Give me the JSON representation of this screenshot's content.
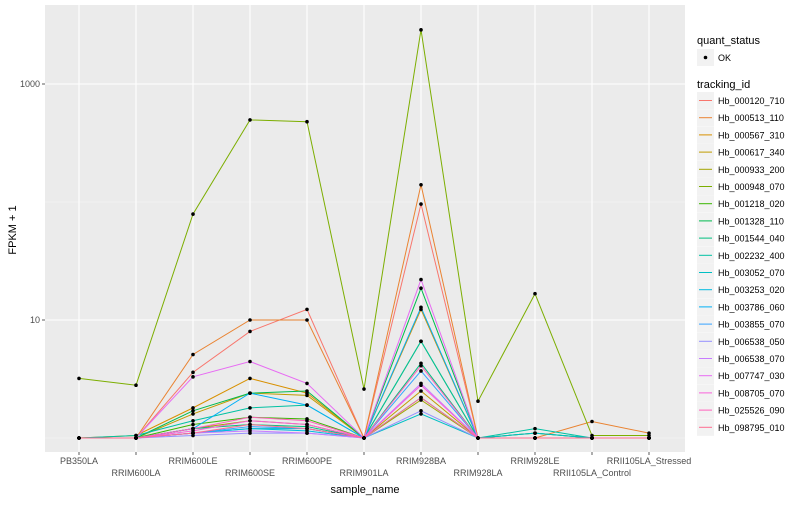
{
  "chart_data": {
    "type": "line",
    "xlabel": "sample_name",
    "ylabel": "FPKM + 1",
    "yscale": "log10",
    "ylim": [
      0.8,
      4000
    ],
    "y_ticks": [
      10,
      1000
    ],
    "y_tick_labels": [
      "10",
      "1000"
    ],
    "grid": true,
    "legend_position": "right",
    "categories": [
      "PB350LA",
      "RRIM600LA",
      "RRIM600LE",
      "RRIM600SE",
      "RRIM600PE",
      "RRIM901LA",
      "RRIM928BA",
      "RRIM928LA",
      "RRIM928LE",
      "RRII105LA_Control",
      "RRII105LA_Stressed"
    ],
    "shape_legend": {
      "title": "quant_status",
      "items": [
        "OK"
      ]
    },
    "color_legend_title": "tracking_id",
    "series": [
      {
        "name": "Hb_000120_710",
        "color": "#F8766D",
        "values": [
          1,
          1,
          3.6,
          8.0,
          12.3,
          1,
          96,
          1,
          1,
          1,
          1
        ]
      },
      {
        "name": "Hb_000513_110",
        "color": "#EA8331",
        "values": [
          1,
          1,
          5.1,
          10,
          10,
          1,
          140,
          1,
          1,
          1.38,
          1.1
        ]
      },
      {
        "name": "Hb_000567_310",
        "color": "#D89000",
        "values": [
          1,
          1.05,
          1.8,
          3.2,
          2.4,
          1,
          12.3,
          1,
          1,
          1,
          1
        ]
      },
      {
        "name": "Hb_000617_340",
        "color": "#C09B00",
        "values": [
          1,
          1,
          1.6,
          2.4,
          2.3,
          1,
          2.5,
          1,
          1,
          1,
          1
        ]
      },
      {
        "name": "Hb_000933_200",
        "color": "#A3A500",
        "values": [
          1,
          1,
          1.2,
          1.4,
          1.3,
          1,
          2.1,
          1,
          1.1,
          1,
          1
        ]
      },
      {
        "name": "Hb_000948_070",
        "color": "#7CAE00",
        "values": [
          3.2,
          2.8,
          79,
          496,
          479,
          2.6,
          2877,
          2.05,
          16.7,
          1.05,
          1.05
        ]
      },
      {
        "name": "Hb_001218_020",
        "color": "#39B600",
        "values": [
          1,
          1,
          1.3,
          1.5,
          1.45,
          1,
          6.6,
          1,
          1,
          1,
          1
        ]
      },
      {
        "name": "Hb_001328_110",
        "color": "#00BB4E",
        "values": [
          1,
          1,
          1.7,
          2.4,
          2.5,
          1,
          18.6,
          1,
          1,
          1,
          1
        ]
      },
      {
        "name": "Hb_001544_040",
        "color": "#00BF7D",
        "values": [
          1,
          1,
          1.2,
          1.3,
          1.25,
          1,
          4.3,
          1,
          1.1,
          1,
          1
        ]
      },
      {
        "name": "Hb_002232_400",
        "color": "#00C1A3",
        "values": [
          1,
          1.05,
          1.4,
          1.8,
          1.9,
          1,
          6.6,
          1,
          1.2,
          1,
          1
        ]
      },
      {
        "name": "Hb_003052_070",
        "color": "#00BFC4",
        "values": [
          1,
          1,
          1.1,
          1.2,
          1.2,
          1,
          1.6,
          1,
          1.1,
          1,
          1
        ]
      },
      {
        "name": "Hb_003253_020",
        "color": "#00BAE0",
        "values": [
          1,
          1,
          1.1,
          1.2,
          1.15,
          1,
          2.2,
          1,
          1,
          1,
          1
        ]
      },
      {
        "name": "Hb_003786_060",
        "color": "#00B0F6",
        "values": [
          1,
          1,
          1.2,
          2.4,
          1.9,
          1,
          12.8,
          1,
          1,
          1,
          1
        ]
      },
      {
        "name": "Hb_003855_070",
        "color": "#35A2FF",
        "values": [
          1,
          1,
          1.1,
          1.25,
          1.2,
          1,
          3.7,
          1,
          1,
          1,
          1
        ]
      },
      {
        "name": "Hb_006538_050",
        "color": "#9590FF",
        "values": [
          1,
          1,
          1.05,
          1.1,
          1.1,
          1,
          1.7,
          1,
          1,
          1,
          1
        ]
      },
      {
        "name": "Hb_006538_070",
        "color": "#C77CFF",
        "values": [
          1,
          1,
          1.1,
          1.15,
          1.1,
          1,
          2.9,
          1,
          1,
          1,
          1
        ]
      },
      {
        "name": "Hb_007747_030",
        "color": "#E76BF3",
        "values": [
          1,
          1,
          3.3,
          4.45,
          2.9,
          1,
          22,
          1,
          1,
          1,
          1
        ]
      },
      {
        "name": "Hb_008705_070",
        "color": "#FA62DB",
        "values": [
          1,
          1,
          1.15,
          1.4,
          1.3,
          1,
          2.8,
          1,
          1,
          1,
          1
        ]
      },
      {
        "name": "Hb_025526_090",
        "color": "#FF62BC",
        "values": [
          1,
          1,
          1.2,
          1.5,
          1.4,
          1,
          4.1,
          1,
          1,
          1,
          1
        ]
      },
      {
        "name": "Hb_098795_010",
        "color": "#FF6C91",
        "values": [
          1,
          1,
          1.1,
          1.3,
          1.2,
          1,
          2.2,
          1,
          1,
          1,
          1
        ]
      }
    ]
  }
}
